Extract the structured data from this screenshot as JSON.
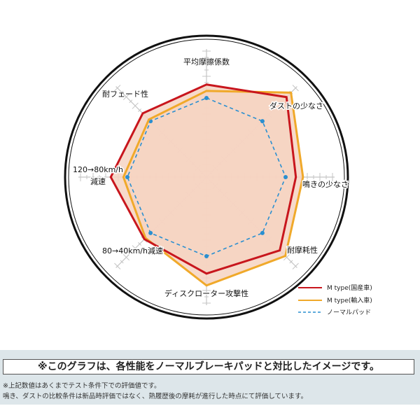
{
  "chart_data": {
    "type": "radar",
    "axes": [
      "平均摩擦係数",
      "ダストの少なさ",
      "鳴きの少なさ",
      "耐摩耗性",
      "ディスクローター攻撃性",
      "80→40km/h減速",
      "120→80km/h\n減速",
      "耐フェード性"
    ],
    "series": [
      {
        "name": "M type(国産車)",
        "color": "#c8161d",
        "style": "solid",
        "values": [
          117,
          143,
          113,
          131,
          122,
          111,
          121,
          114
        ]
      },
      {
        "name": "M type(輸入車)",
        "color": "#f0a92a",
        "style": "solid",
        "values": [
          109,
          151,
          122,
          141,
          137,
          109,
          105,
          103
        ]
      },
      {
        "name": "ノーマルパッド",
        "color": "#2a8fd0",
        "style": "dashed",
        "values": [
          100,
          100,
          100,
          100,
          100,
          100,
          100,
          100
        ]
      }
    ],
    "fill_color": "#f6d4c2",
    "grid": true,
    "legend": "bottom-right"
  },
  "notes": {
    "boxed": "※このグラフは、各性能をノーマルブレーキパッドと対比したイメージです。",
    "line1": "※上記数値はあくまでテスト条件下での評価値です。",
    "line2": "鳴き、ダストの比較条件は新品時評価ではなく、熱履歴後の摩耗が進行した時点にて評価しています。"
  }
}
